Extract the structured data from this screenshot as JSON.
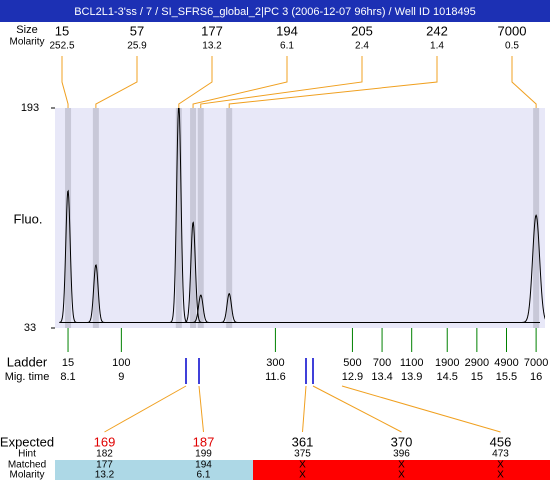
{
  "title": "BCL2L1-3'ss / 7 / SI_SFRS6_global_2|PC 3 (2006-12-07 96hrs) / Well ID 1018495",
  "peak_table": {
    "row_labels": [
      "Size",
      "Molarity"
    ],
    "sizes": [
      15,
      57,
      177,
      194,
      205,
      242,
      7000
    ],
    "molarity": [
      252.5,
      25.9,
      13.2,
      6.1,
      2.4,
      1.4,
      0.5
    ]
  },
  "chart_data": {
    "type": "electropherogram",
    "y_label": "Fluo.",
    "ylim": [
      33,
      193
    ],
    "yticks": [
      33,
      193
    ],
    "xlim": [
      7.88,
      16.15
    ],
    "baseline": 37,
    "peaks": {
      "x": [
        8.1,
        8.57,
        9.97,
        10.21,
        10.34,
        10.82,
        16.0
      ],
      "heights": [
        133,
        79,
        195,
        110,
        57,
        58,
        115
      ]
    },
    "color": "#000000",
    "band_color": "#c8c8d8",
    "plot_color": "#e8e8f8",
    "link_color": "#f0a020"
  },
  "ladder": {
    "row_labels": [
      "Ladder",
      "Mig. time"
    ],
    "color": "#008000",
    "sizes": [
      15,
      100,
      300,
      500,
      700,
      1100,
      1900,
      2900,
      4900,
      7000
    ],
    "times": [
      8.1,
      9,
      11.6,
      12.9,
      13.4,
      13.9,
      14.5,
      15,
      15.5,
      16
    ]
  },
  "expected": {
    "row_labels": [
      "Expected",
      "Hint",
      "Matched",
      "Molarity"
    ],
    "expected": [
      169,
      187,
      361,
      370,
      456
    ],
    "hint": [
      182,
      199,
      375,
      396,
      473
    ],
    "matched": [
      177,
      194,
      "X",
      "X",
      "X"
    ],
    "molarity": [
      13.2,
      6.1,
      "X",
      "X",
      "X"
    ],
    "text_colors": [
      "#e00000",
      "#e00000",
      "#000000",
      "#000000",
      "#000000"
    ],
    "cell_colors": [
      "#add8e6",
      "#add8e6",
      "#ff0000",
      "#ff0000",
      "#ff0000"
    ],
    "marker_color": "#0000cc"
  }
}
